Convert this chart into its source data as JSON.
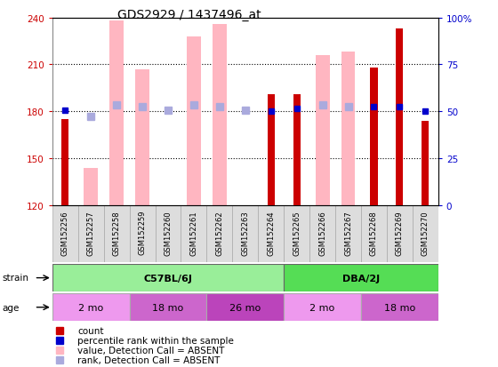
{
  "title": "GDS2929 / 1437496_at",
  "samples": [
    "GSM152256",
    "GSM152257",
    "GSM152258",
    "GSM152259",
    "GSM152260",
    "GSM152261",
    "GSM152262",
    "GSM152263",
    "GSM152264",
    "GSM152265",
    "GSM152266",
    "GSM152267",
    "GSM152268",
    "GSM152269",
    "GSM152270"
  ],
  "count_values": [
    175,
    null,
    null,
    null,
    null,
    null,
    null,
    null,
    191,
    191,
    null,
    null,
    208,
    233,
    174
  ],
  "count_absent": [
    null,
    144,
    238,
    207,
    120,
    228,
    236,
    120,
    null,
    null,
    216,
    218,
    null,
    null,
    null
  ],
  "rank_values": [
    181,
    null,
    null,
    null,
    null,
    null,
    null,
    null,
    180,
    182,
    null,
    null,
    183,
    183,
    180
  ],
  "rank_absent": [
    null,
    177,
    184,
    183,
    181,
    184,
    183,
    181,
    null,
    null,
    184,
    183,
    null,
    null,
    null
  ],
  "ylim": [
    120,
    240
  ],
  "yticks_left": [
    120,
    150,
    180,
    210,
    240
  ],
  "yticks_right": [
    0,
    25,
    50,
    75,
    100
  ],
  "strain_groups": [
    {
      "label": "C57BL/6J",
      "start": 0,
      "end": 9,
      "color": "#99EE99"
    },
    {
      "label": "DBA/2J",
      "start": 9,
      "end": 15,
      "color": "#55DD55"
    }
  ],
  "age_groups": [
    {
      "label": "2 mo",
      "start": 0,
      "end": 3,
      "color": "#EE99EE"
    },
    {
      "label": "18 mo",
      "start": 3,
      "end": 6,
      "color": "#CC66CC"
    },
    {
      "label": "26 mo",
      "start": 6,
      "end": 9,
      "color": "#BB44BB"
    },
    {
      "label": "2 mo",
      "start": 9,
      "end": 12,
      "color": "#EE99EE"
    },
    {
      "label": "18 mo",
      "start": 12,
      "end": 15,
      "color": "#CC66CC"
    }
  ],
  "color_count": "#CC0000",
  "color_rank": "#0000CC",
  "color_count_absent": "#FFB6C1",
  "color_rank_absent": "#AAAADD",
  "left_tick_color": "#CC0000",
  "right_tick_color": "#0000CC",
  "hlines": [
    150,
    180,
    210
  ],
  "legend_items": [
    {
      "color": "#CC0000",
      "label": "count",
      "marker": "s"
    },
    {
      "color": "#0000CC",
      "label": "percentile rank within the sample",
      "marker": "s"
    },
    {
      "color": "#FFB6C1",
      "label": "value, Detection Call = ABSENT",
      "marker": "s"
    },
    {
      "color": "#AAAADD",
      "label": "rank, Detection Call = ABSENT",
      "marker": "s"
    }
  ]
}
